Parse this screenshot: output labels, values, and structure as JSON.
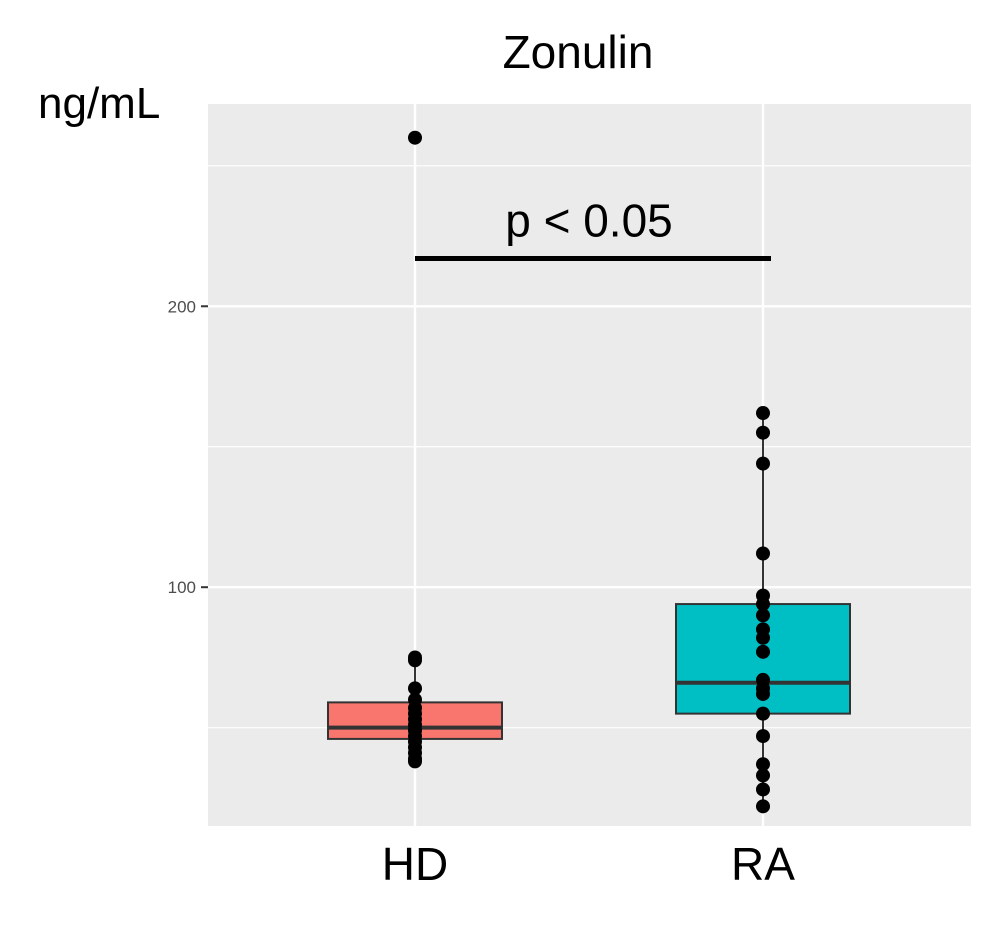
{
  "chart_data": {
    "type": "box",
    "title": "Zonulin",
    "ylabel": "ng/mL",
    "xlabel": "",
    "ylim": [
      15,
      272
    ],
    "yticks": [
      100,
      200
    ],
    "ytick_labels": [
      "100",
      "200"
    ],
    "grid": true,
    "legend": "none",
    "categories": [
      "HD",
      "RA"
    ],
    "colors": {
      "HD": "#F8766D",
      "RA": "#00BFC4",
      "panel": "#EBEBEB",
      "grid": "#FFFFFF",
      "points": "#000000"
    },
    "groups": [
      {
        "name": "HD",
        "q1": 46,
        "median": 50,
        "q3": 59,
        "whisker_low": 38,
        "whisker_high": 75,
        "points": [
          260,
          75,
          74,
          64,
          60,
          57,
          55,
          53,
          51,
          49,
          47,
          45,
          43,
          41,
          39,
          38
        ]
      },
      {
        "name": "RA",
        "q1": 55,
        "median": 66,
        "q3": 94,
        "whisker_low": 22,
        "whisker_high": 162,
        "points": [
          162,
          155,
          144,
          112,
          97,
          94,
          90,
          85,
          82,
          77,
          67,
          64,
          62,
          55,
          47,
          37,
          33,
          28,
          22
        ]
      }
    ],
    "annotations": [
      {
        "text": "p < 0.05",
        "between": [
          "HD",
          "RA"
        ],
        "y": 217
      }
    ]
  }
}
